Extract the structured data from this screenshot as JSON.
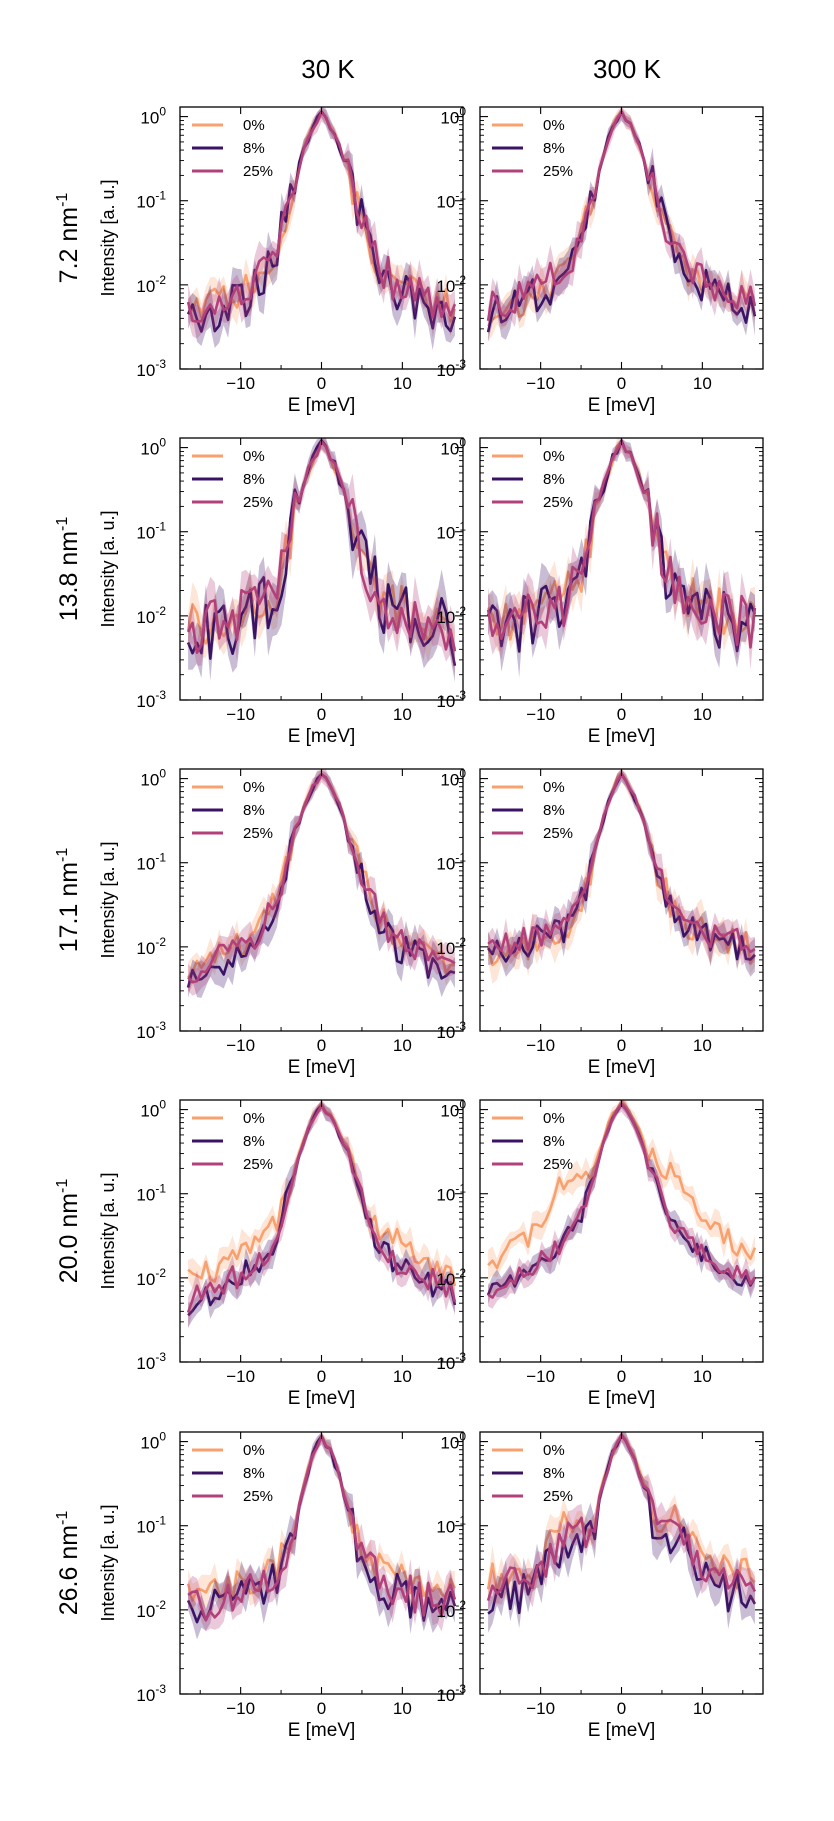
{
  "figure": {
    "column_titles": [
      "30 K",
      "300 K"
    ],
    "row_q_values": [
      "7.2",
      "13.8",
      "17.1",
      "20.0",
      "26.6"
    ],
    "row_unit": "nm",
    "row_unit_exp": "-1"
  },
  "colors": {
    "s0": "#f9a16e",
    "s8": "#3b1365",
    "s25": "#b2417a"
  },
  "chart_data": {
    "type": "line",
    "x_range": [
      -17.5,
      17.5
    ],
    "y_scale": "log",
    "y_range": [
      0.001,
      1.3
    ],
    "xlabel": "E [meV]",
    "ylabel": "Intensity [a. u.]",
    "x_ticks": [
      -10,
      0,
      10
    ],
    "x_tick_labels": [
      "−10",
      "0",
      "10"
    ],
    "y_ticks": [
      0.001,
      0.01,
      0.1,
      1
    ],
    "y_tick_mantissa": "10",
    "y_tick_exponents": [
      "-3",
      "-2",
      "-1",
      "0"
    ],
    "legend": [
      "0%",
      "8%",
      "25%"
    ],
    "panels": [
      {
        "row": 0,
        "col": 0,
        "temperature": "30 K",
        "q": "7.2",
        "bg": [
          0.003,
          0.0022,
          0.0035
        ],
        "tail": [
          0.012,
          0.01,
          0.011
        ],
        "wL": 2.2,
        "wR": 2.4,
        "hump": [
          0,
          0,
          0
        ],
        "noise": [
          0.2,
          0.26,
          0.24
        ]
      },
      {
        "row": 0,
        "col": 1,
        "temperature": "300 K",
        "q": "7.2",
        "bg": [
          0.0032,
          0.0028,
          0.0038
        ],
        "tail": [
          0.012,
          0.012,
          0.014
        ],
        "wL": 2.1,
        "wR": 2.5,
        "hump": [
          0,
          0,
          0
        ],
        "noise": [
          0.18,
          0.22,
          0.2
        ]
      },
      {
        "row": 1,
        "col": 0,
        "temperature": "30 K",
        "q": "13.8",
        "bg": [
          0.006,
          0.004,
          0.0055
        ],
        "tail": [
          0.012,
          0.012,
          0.012
        ],
        "wL": 2.0,
        "wR": 2.3,
        "hump": [
          0,
          0,
          0
        ],
        "noise": [
          0.3,
          0.4,
          0.34
        ]
      },
      {
        "row": 1,
        "col": 1,
        "temperature": "300 K",
        "q": "13.8",
        "bg": [
          0.007,
          0.0045,
          0.006
        ],
        "tail": [
          0.012,
          0.012,
          0.012
        ],
        "wL": 2.0,
        "wR": 2.3,
        "hump": [
          0,
          0,
          0
        ],
        "noise": [
          0.28,
          0.36,
          0.3
        ]
      },
      {
        "row": 2,
        "col": 0,
        "temperature": "30 K",
        "q": "17.1",
        "bg": [
          0.0028,
          0.0022,
          0.003
        ],
        "tail": [
          0.014,
          0.011,
          0.013
        ],
        "wL": 2.4,
        "wR": 2.6,
        "hump": [
          0,
          0,
          0
        ],
        "noise": [
          0.16,
          0.2,
          0.18
        ]
      },
      {
        "row": 2,
        "col": 1,
        "temperature": "300 K",
        "q": "17.1",
        "bg": [
          0.008,
          0.0075,
          0.0085
        ],
        "tail": [
          0.012,
          0.012,
          0.013
        ],
        "wL": 2.0,
        "wR": 2.3,
        "hump": [
          0,
          0,
          0
        ],
        "noise": [
          0.22,
          0.18,
          0.16
        ]
      },
      {
        "row": 3,
        "col": 0,
        "temperature": "30 K",
        "q": "20.0",
        "bg": [
          0.0045,
          0.0028,
          0.003
        ],
        "tail": [
          0.03,
          0.016,
          0.017
        ],
        "wL": 2.2,
        "wR": 2.6,
        "hump": [
          0.0,
          0.0,
          0.0
        ],
        "noise": [
          0.16,
          0.15,
          0.15
        ]
      },
      {
        "row": 3,
        "col": 1,
        "temperature": "300 K",
        "q": "20.0",
        "bg": [
          0.008,
          0.003,
          0.003
        ],
        "tail": [
          0.06,
          0.03,
          0.03
        ],
        "wL": 2.1,
        "wR": 2.4,
        "hump": [
          0.1,
          0.0,
          0.0
        ],
        "noise": [
          0.14,
          0.12,
          0.12
        ]
      },
      {
        "row": 4,
        "col": 0,
        "temperature": "30 K",
        "q": "26.6",
        "bg": [
          0.015,
          0.0085,
          0.01
        ],
        "tail": [
          0.02,
          0.014,
          0.016
        ],
        "wL": 1.8,
        "wR": 2.1,
        "hump": [
          0,
          0,
          0
        ],
        "noise": [
          0.18,
          0.24,
          0.22
        ]
      },
      {
        "row": 4,
        "col": 1,
        "temperature": "300 K",
        "q": "26.6",
        "bg": [
          0.022,
          0.012,
          0.016
        ],
        "tail": [
          0.03,
          0.02,
          0.025
        ],
        "wL": 1.8,
        "wR": 2.1,
        "hump": [
          0.07,
          0.04,
          0.045
        ],
        "noise": [
          0.2,
          0.26,
          0.22
        ]
      }
    ]
  }
}
